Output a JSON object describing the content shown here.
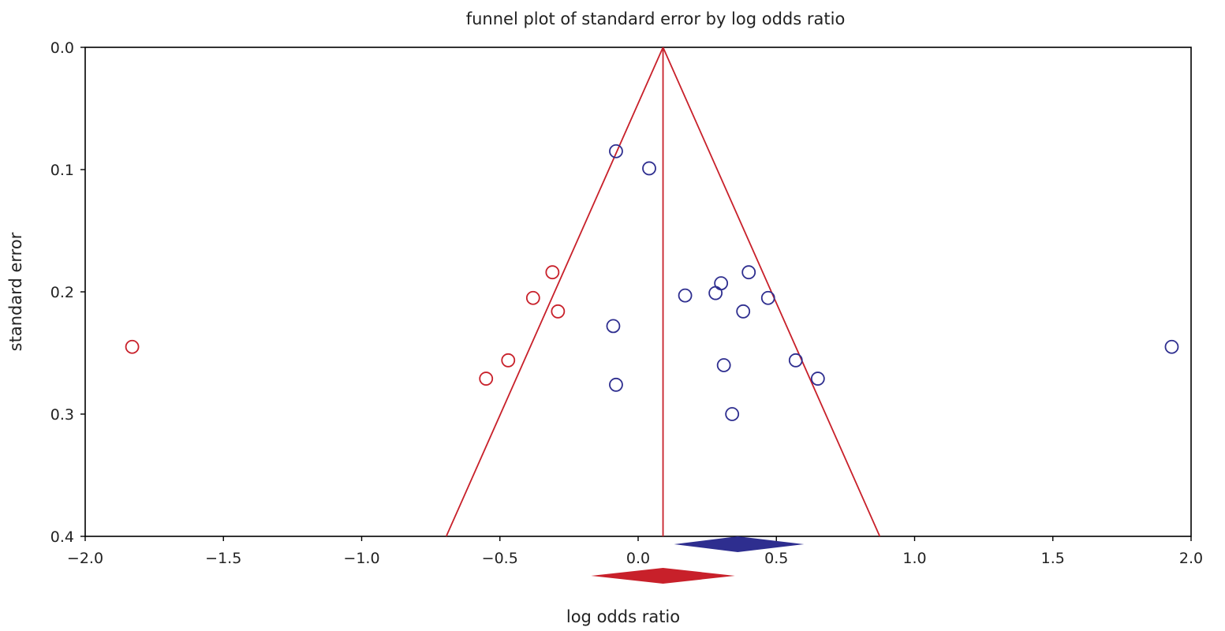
{
  "chart_data": {
    "type": "scatter",
    "title": "funnel plot of standard error by log odds ratio",
    "xlabel": "log odds ratio",
    "ylabel": "standard error",
    "xlim": [
      -2.0,
      2.0
    ],
    "ylim": [
      0.0,
      0.4
    ],
    "y_inverted": true,
    "grid": false,
    "legend": "none",
    "x_ticks": [
      "−2.0",
      "−1.5",
      "−1.0",
      "−0.5",
      "0.0",
      "0.5",
      "1.0",
      "1.5",
      "2.0"
    ],
    "x_tick_values": [
      -2.0,
      -1.5,
      -1.0,
      -0.5,
      0.0,
      0.5,
      1.0,
      1.5,
      2.0
    ],
    "y_ticks": [
      "0.0",
      "0.1",
      "0.2",
      "0.3",
      "0.4"
    ],
    "y_tick_values": [
      0.0,
      0.1,
      0.2,
      0.3,
      0.4
    ],
    "colors": {
      "observed": "#2e2e8f",
      "imputed": "#c8202a",
      "axes": "#000000"
    },
    "series": [
      {
        "role": "observed",
        "points": [
          {
            "x": -0.08,
            "y": 0.085
          },
          {
            "x": 0.04,
            "y": 0.099
          },
          {
            "x": 0.17,
            "y": 0.203
          },
          {
            "x": 0.28,
            "y": 0.201
          },
          {
            "x": 0.3,
            "y": 0.193
          },
          {
            "x": 0.4,
            "y": 0.184
          },
          {
            "x": 0.38,
            "y": 0.216
          },
          {
            "x": 0.47,
            "y": 0.205
          },
          {
            "x": -0.09,
            "y": 0.228
          },
          {
            "x": -0.08,
            "y": 0.276
          },
          {
            "x": 0.31,
            "y": 0.26
          },
          {
            "x": 0.57,
            "y": 0.256
          },
          {
            "x": 0.65,
            "y": 0.271
          },
          {
            "x": 0.34,
            "y": 0.3
          },
          {
            "x": 1.93,
            "y": 0.245
          }
        ]
      },
      {
        "role": "imputed",
        "points": [
          {
            "x": -0.31,
            "y": 0.184
          },
          {
            "x": -0.38,
            "y": 0.205
          },
          {
            "x": -0.29,
            "y": 0.216
          },
          {
            "x": -0.47,
            "y": 0.256
          },
          {
            "x": -0.55,
            "y": 0.271
          },
          {
            "x": -1.83,
            "y": 0.245
          }
        ]
      }
    ],
    "funnel": {
      "center": 0.09,
      "se_max": 0.4
    },
    "summary_diamonds": [
      {
        "role": "observed",
        "estimate": 0.36,
        "lower": 0.13,
        "upper": 0.6
      },
      {
        "role": "imputed",
        "estimate": 0.09,
        "lower": -0.17,
        "upper": 0.35
      }
    ]
  }
}
